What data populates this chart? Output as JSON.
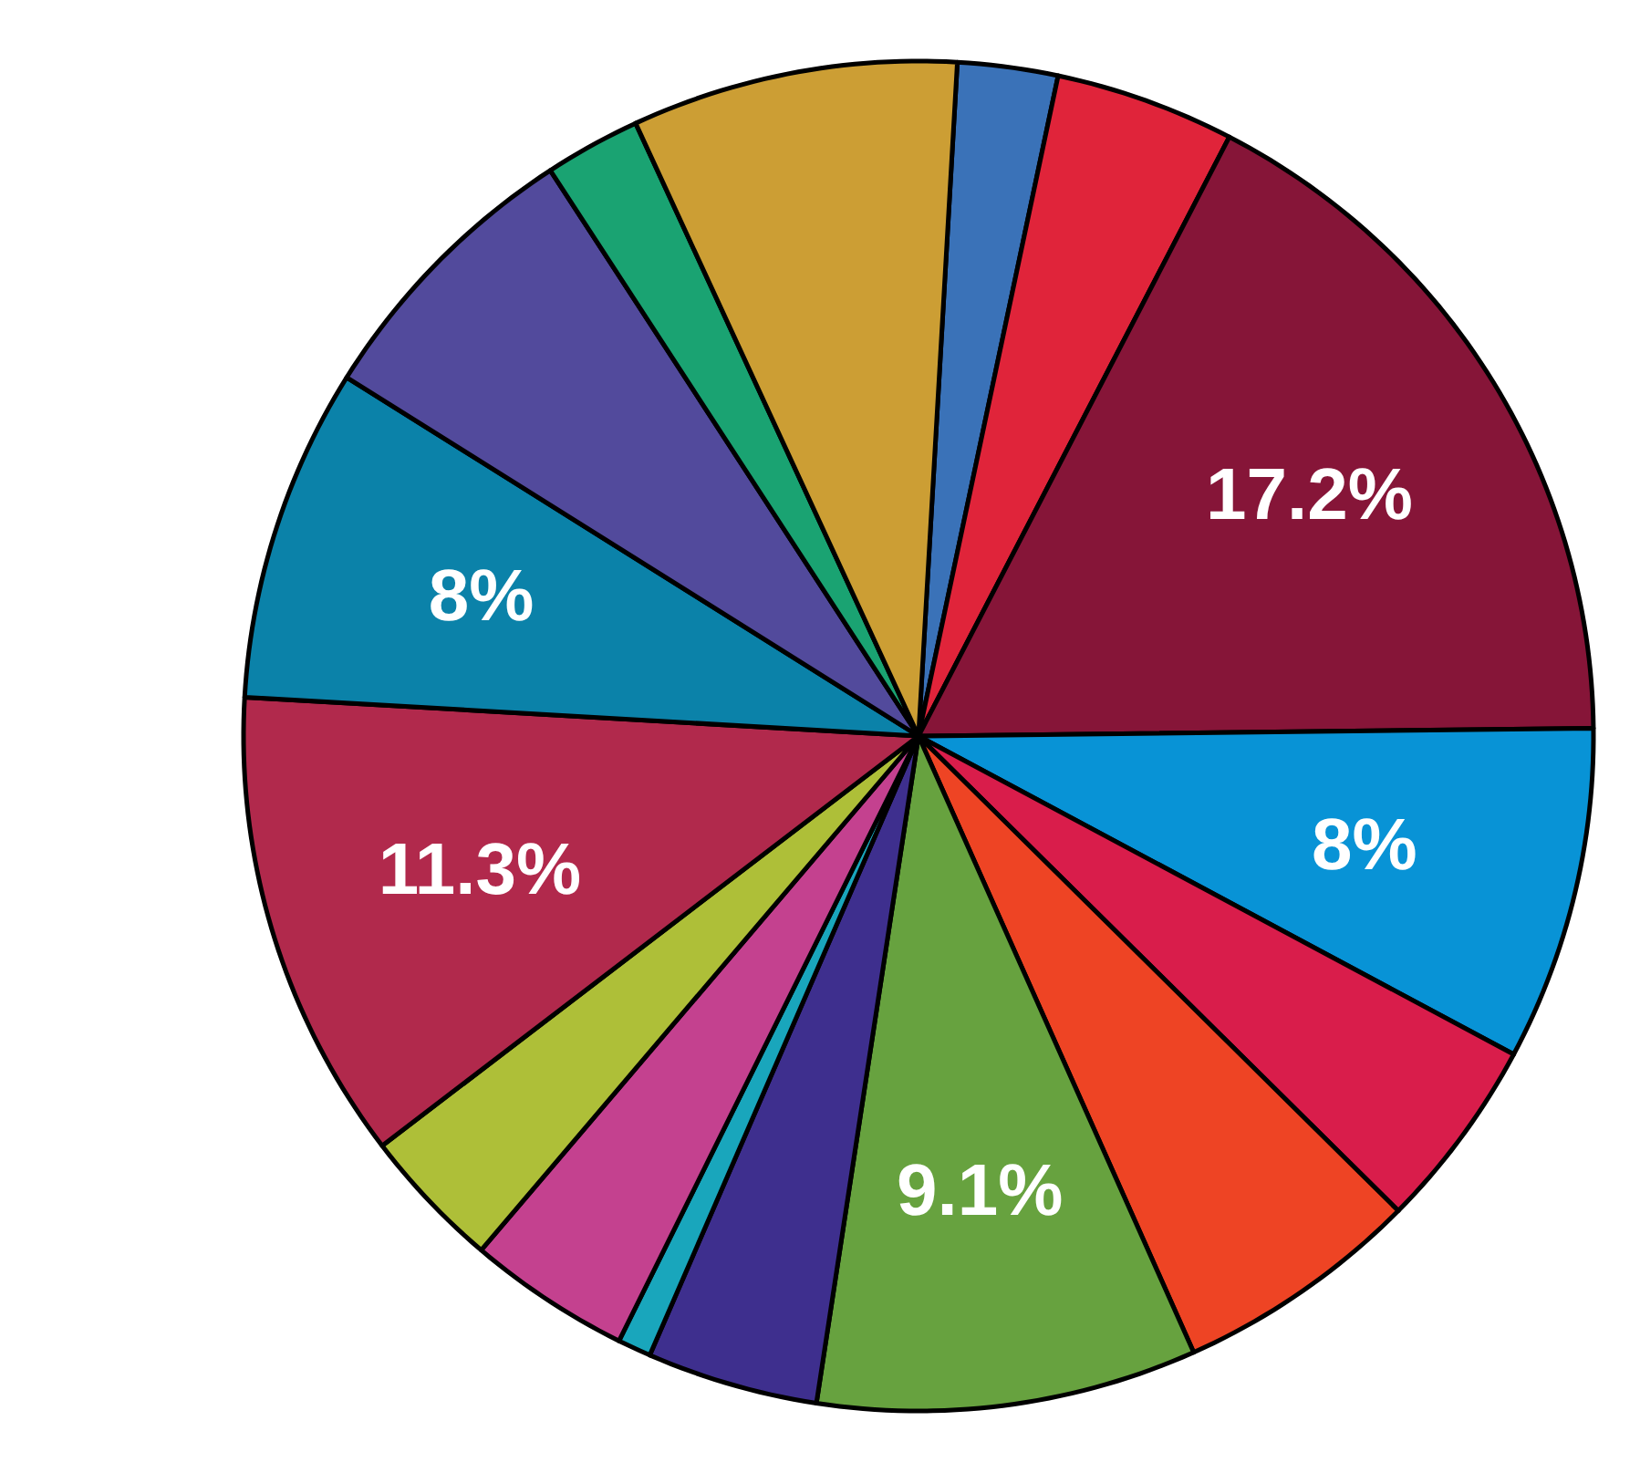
{
  "chart_data": {
    "type": "pie",
    "categories": [
      null,
      null,
      null,
      null,
      null,
      null,
      null,
      null,
      null,
      null,
      null,
      null,
      null,
      null,
      null,
      null
    ],
    "values": [
      2.4,
      4.3,
      17.2,
      8,
      4.6,
      5.9,
      9.1,
      4.1,
      0.8,
      3.9,
      3.4,
      11.3,
      8,
      6.9,
      2.3,
      7.8
    ],
    "colors": [
      "#3a72b8",
      "#e0243a",
      "#861538",
      "#0893d6",
      "#d91d4b",
      "#ee4424",
      "#67a23f",
      "#3e2f8e",
      "#19a6bc",
      "#c4418f",
      "#aebf38",
      "#b1294c",
      "#0b82a9",
      "#524a9c",
      "#1aa372",
      "#cc9e34"
    ],
    "value_labels": [
      null,
      null,
      "17.2%",
      "8%",
      null,
      null,
      "9.1%",
      null,
      null,
      null,
      null,
      "11.3%",
      "8%",
      null,
      null,
      null
    ]
  }
}
